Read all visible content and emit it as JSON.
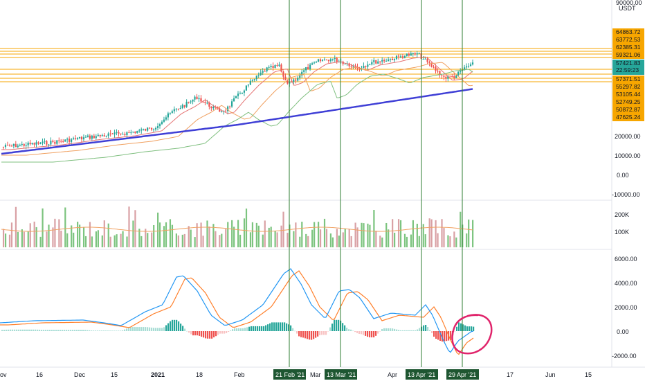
{
  "chart_data": [
    {
      "type": "candlestick",
      "panel": "price",
      "pair_label": "USDT",
      "top_label": "90000.00",
      "y_ticks": [
        "20000.00",
        "10000.00",
        "0.00",
        "-10000.00"
      ],
      "y_tick_values": [
        20000,
        10000,
        0,
        -10000
      ],
      "price_levels": [
        "64863.72",
        "63772.53",
        "62385.31",
        "59321.06",
        "57371.51",
        "55297.82",
        "53105.44",
        "52749.25",
        "50872.87",
        "47625.24"
      ],
      "current_price": "57421.83",
      "countdown": "22:59:23",
      "colors": {
        "up": "#26a69a",
        "down": "#ef5350",
        "level_line": "#f7a600",
        "level_badge": "#f7a600",
        "price_badge": "#26a69a",
        "ma_long": "#3f3fd6",
        "ma_mid": "#7fbf7f",
        "ma_short": "#f0a060",
        "ma_fast": "#e57373",
        "vline": "#2e7d32"
      }
    },
    {
      "type": "bar",
      "panel": "volume",
      "y_ticks": [
        "200K",
        "100K"
      ],
      "y_tick_values": [
        200000,
        100000
      ],
      "colors": {
        "up": "#7cc47f",
        "down": "#d9a0a4",
        "ma": "#f0a060"
      }
    },
    {
      "type": "macd",
      "panel": "macd",
      "y_ticks": [
        "6000.00",
        "4000.00",
        "2000.00",
        "0.00",
        "-2000.00"
      ],
      "y_tick_values": [
        6000,
        4000,
        2000,
        0,
        -2000
      ],
      "colors": {
        "macd": "#2196f3",
        "signal": "#ff7f2a",
        "hist_pos_strong": "#26a69a",
        "hist_pos_weak": "#a8ddd5",
        "hist_neg_strong": "#ef5350",
        "hist_neg_weak": "#f8c3c3",
        "annotation": "#e0246b"
      }
    }
  ],
  "x_axis": {
    "labels": [
      "ov",
      "16",
      "Dec",
      "15",
      "2021",
      "18",
      "Feb",
      "Mar",
      "Apr",
      "17",
      "Jun",
      "15"
    ],
    "highlighted_dates": [
      "21 Feb '21",
      "13 Mar '21",
      "13 Apr '21",
      "29 Apr '21"
    ]
  }
}
